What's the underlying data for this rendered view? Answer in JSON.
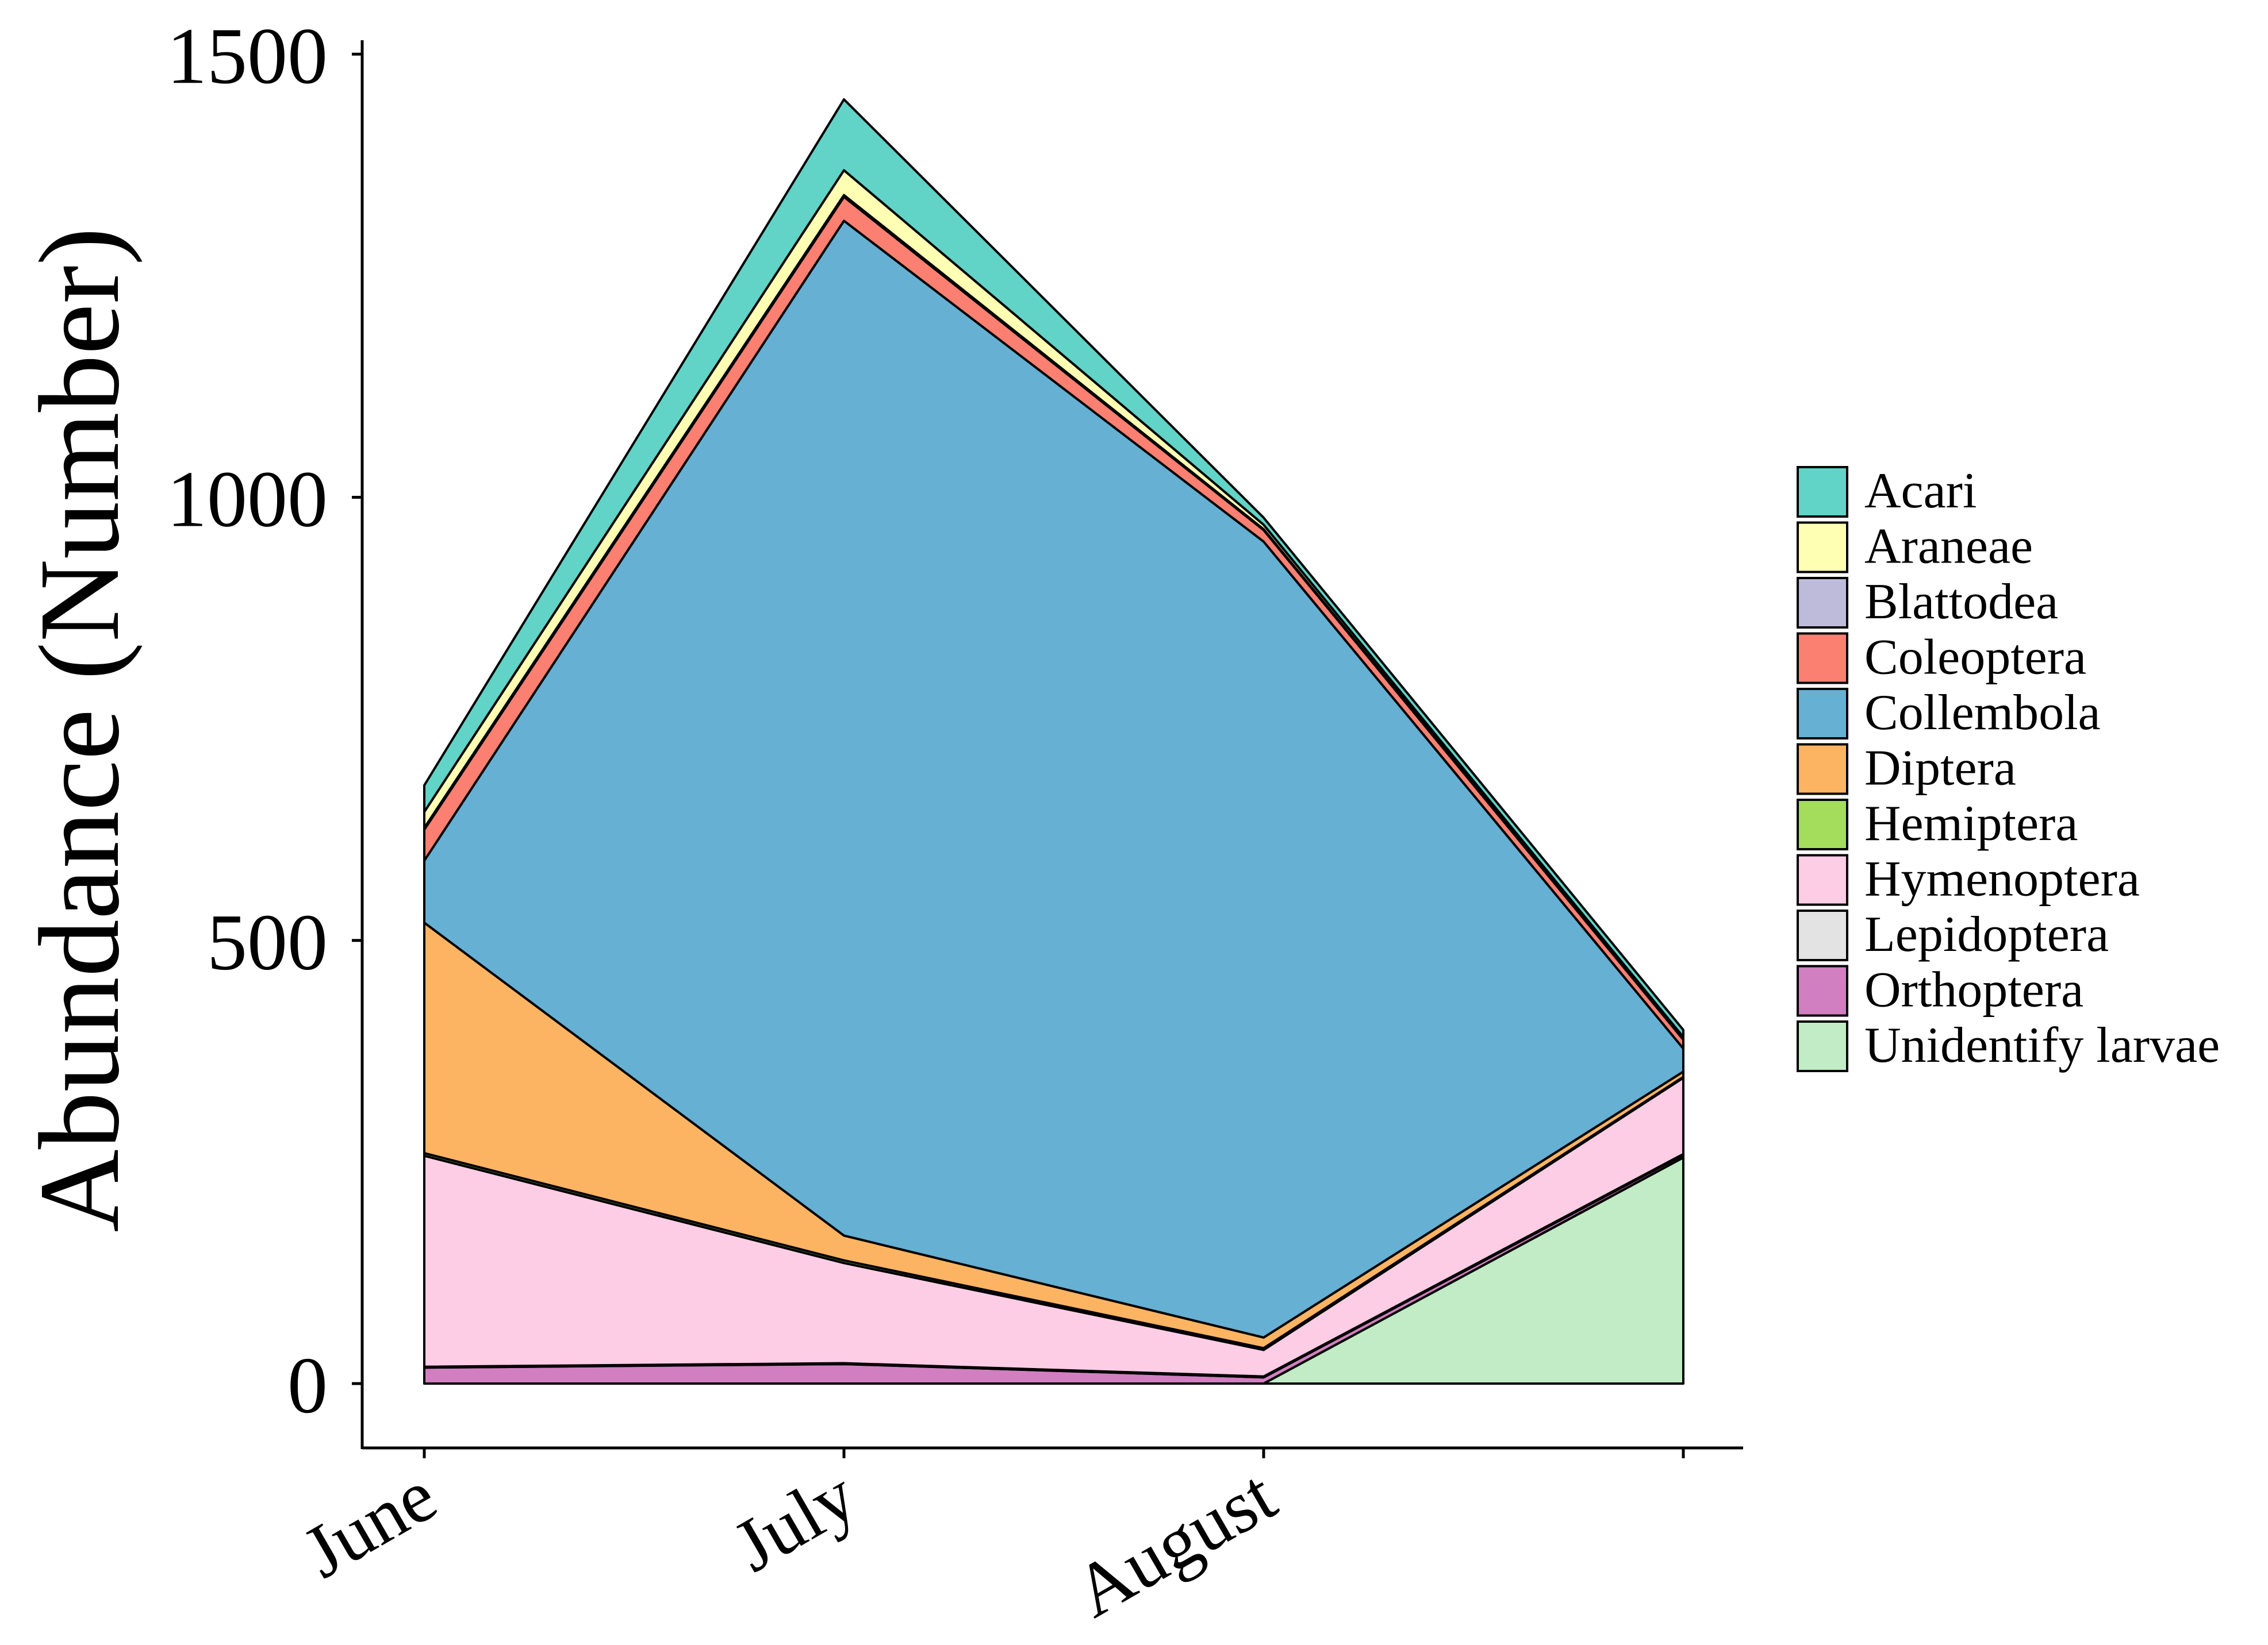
{
  "chart_data": {
    "type": "area",
    "stacked": true,
    "ylabel": "Abundance (Number)",
    "xlabel": "",
    "categories": [
      "June",
      "July",
      "August",
      ""
    ],
    "ylim": [
      -70,
      1520
    ],
    "yticks": [
      0,
      500,
      1000,
      1500
    ],
    "grid": false,
    "legend_position": "right",
    "series": [
      {
        "name": "Unidentify larvae",
        "color": "#c1ecc5",
        "values": [
          0,
          0,
          0,
          255
        ]
      },
      {
        "name": "Orthoptera",
        "color": "#d17fc0",
        "values": [
          18,
          22,
          7,
          3
        ]
      },
      {
        "name": "Lepidoptera",
        "color": "#e3e3e3",
        "values": [
          1,
          1,
          1,
          1
        ]
      },
      {
        "name": "Hymenoptera",
        "color": "#fccde5",
        "values": [
          238,
          113,
          30,
          86
        ]
      },
      {
        "name": "Hemiptera",
        "color": "#a3dd5b",
        "values": [
          3,
          3,
          2,
          1
        ]
      },
      {
        "name": "Diptera",
        "color": "#fdb462",
        "values": [
          260,
          28,
          12,
          6
        ]
      },
      {
        "name": "Collembola",
        "color": "#65b0d3",
        "values": [
          70,
          1145,
          898,
          26
        ]
      },
      {
        "name": "Coleoptera",
        "color": "#fb8072",
        "values": [
          35,
          27,
          13,
          10
        ]
      },
      {
        "name": "Blattodea",
        "color": "#bebada",
        "values": [
          2,
          2,
          1,
          1
        ]
      },
      {
        "name": "Araneae",
        "color": "#ffffb3",
        "values": [
          18,
          28,
          5,
          2
        ]
      },
      {
        "name": "Acari",
        "color": "#61d3c7",
        "values": [
          30,
          80,
          8,
          8
        ]
      }
    ],
    "legend_order": [
      "Acari",
      "Araneae",
      "Blattodea",
      "Coleoptera",
      "Collembola",
      "Diptera",
      "Hemiptera",
      "Hymenoptera",
      "Lepidoptera",
      "Orthoptera",
      "Unidentify larvae"
    ]
  }
}
